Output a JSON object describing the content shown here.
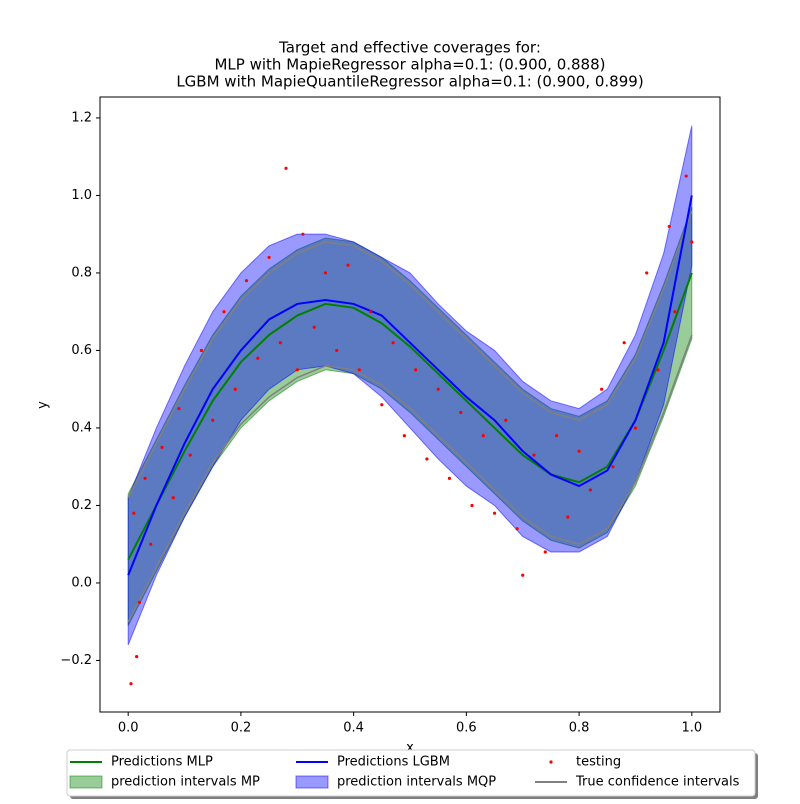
{
  "chart_data": {
    "type": "line",
    "title": [
      "Target and effective coverages for:",
      "MLP with MapieRegressor alpha=0.1: (0.900, 0.888)",
      "LGBM with MapieQuantileRegressor alpha=0.1: (0.900, 0.899)"
    ],
    "x_label": "x",
    "y_label": "y",
    "xlim": [
      -0.05,
      1.05
    ],
    "ylim": [
      -0.333,
      1.254
    ],
    "xticks": [
      {
        "value": 0,
        "label": "0.0"
      },
      {
        "value": 0.2,
        "label": "0.2"
      },
      {
        "value": 0.4,
        "label": "0.4"
      },
      {
        "value": 0.6,
        "label": "0.6"
      },
      {
        "value": 0.8,
        "label": "0.8"
      },
      {
        "value": 1,
        "label": "1.0"
      }
    ],
    "yticks": [
      {
        "value": -0.2,
        "label": "−0.2"
      },
      {
        "value": 0,
        "label": "0.0"
      },
      {
        "value": 0.2,
        "label": "0.2"
      },
      {
        "value": 0.4,
        "label": "0.4"
      },
      {
        "value": 0.6,
        "label": "0.6"
      },
      {
        "value": 0.8,
        "label": "0.8"
      },
      {
        "value": 1,
        "label": "1.0"
      },
      {
        "value": 1.2,
        "label": "1.2"
      }
    ],
    "legend": "lower center",
    "x": [
      0,
      0.05,
      0.1,
      0.15,
      0.2,
      0.25,
      0.3,
      0.35,
      0.4,
      0.45,
      0.5,
      0.55,
      0.6,
      0.65,
      0.7,
      0.75,
      0.8,
      0.85,
      0.9,
      0.95,
      1.0
    ],
    "series": [
      {
        "name": "Predictions MLP",
        "kind": "line",
        "color": "#008000",
        "values": [
          0.06,
          0.2,
          0.34,
          0.47,
          0.57,
          0.64,
          0.69,
          0.72,
          0.71,
          0.67,
          0.61,
          0.54,
          0.47,
          0.4,
          0.33,
          0.28,
          0.26,
          0.3,
          0.42,
          0.6,
          0.8
        ]
      },
      {
        "name": "prediction intervals MP",
        "kind": "band",
        "color": "#008000",
        "lower": [
          -0.11,
          0.03,
          0.17,
          0.3,
          0.4,
          0.47,
          0.52,
          0.55,
          0.54,
          0.5,
          0.44,
          0.37,
          0.3,
          0.23,
          0.16,
          0.11,
          0.09,
          0.13,
          0.25,
          0.43,
          0.63
        ],
        "upper": [
          0.23,
          0.37,
          0.51,
          0.64,
          0.74,
          0.81,
          0.86,
          0.89,
          0.88,
          0.84,
          0.78,
          0.71,
          0.64,
          0.57,
          0.5,
          0.45,
          0.43,
          0.47,
          0.59,
          0.77,
          0.97
        ]
      },
      {
        "name": "Predictions LGBM",
        "kind": "line",
        "color": "#0000ff",
        "values": [
          0.02,
          0.2,
          0.36,
          0.5,
          0.6,
          0.68,
          0.72,
          0.73,
          0.72,
          0.69,
          0.62,
          0.55,
          0.48,
          0.42,
          0.34,
          0.28,
          0.25,
          0.29,
          0.42,
          0.62,
          1.0
        ]
      },
      {
        "name": "prediction intervals MQP",
        "kind": "band",
        "color": "#0000ff",
        "lower": [
          -0.16,
          0.02,
          0.17,
          0.3,
          0.42,
          0.5,
          0.55,
          0.56,
          0.54,
          0.48,
          0.4,
          0.32,
          0.25,
          0.2,
          0.12,
          0.08,
          0.08,
          0.12,
          0.26,
          0.46,
          0.82
        ],
        "upper": [
          0.22,
          0.4,
          0.56,
          0.7,
          0.8,
          0.87,
          0.9,
          0.9,
          0.88,
          0.84,
          0.8,
          0.72,
          0.65,
          0.6,
          0.52,
          0.47,
          0.45,
          0.5,
          0.64,
          0.85,
          1.18
        ]
      },
      {
        "name": "testing",
        "kind": "scatter",
        "color": "#ff0000",
        "x": [
          0.005,
          0.01,
          0.015,
          0.02,
          0.03,
          0.04,
          0.06,
          0.08,
          0.09,
          0.11,
          0.13,
          0.15,
          0.17,
          0.19,
          0.21,
          0.23,
          0.25,
          0.27,
          0.28,
          0.3,
          0.31,
          0.33,
          0.35,
          0.37,
          0.39,
          0.41,
          0.43,
          0.45,
          0.47,
          0.49,
          0.51,
          0.53,
          0.55,
          0.57,
          0.59,
          0.61,
          0.63,
          0.65,
          0.67,
          0.69,
          0.7,
          0.72,
          0.74,
          0.76,
          0.78,
          0.8,
          0.82,
          0.84,
          0.86,
          0.88,
          0.9,
          0.92,
          0.94,
          0.96,
          0.97,
          0.99,
          1.0
        ],
        "values": [
          -0.26,
          0.18,
          -0.19,
          -0.05,
          0.27,
          0.1,
          0.35,
          0.22,
          0.45,
          0.33,
          0.6,
          0.42,
          0.7,
          0.5,
          0.78,
          0.58,
          0.84,
          0.62,
          1.07,
          0.55,
          0.9,
          0.66,
          0.8,
          0.6,
          0.82,
          0.55,
          0.7,
          0.46,
          0.62,
          0.38,
          0.55,
          0.32,
          0.5,
          0.27,
          0.44,
          0.2,
          0.38,
          0.18,
          0.42,
          0.14,
          0.02,
          0.33,
          0.08,
          0.38,
          0.17,
          0.34,
          0.24,
          0.5,
          0.3,
          0.62,
          0.4,
          0.8,
          0.55,
          0.92,
          0.7,
          1.05,
          0.88
        ]
      },
      {
        "name": "True confidence intervals",
        "kind": "ci",
        "color": "#808080",
        "lower": [
          -0.1,
          0.04,
          0.18,
          0.31,
          0.41,
          0.48,
          0.53,
          0.56,
          0.55,
          0.51,
          0.45,
          0.38,
          0.31,
          0.24,
          0.17,
          0.12,
          0.1,
          0.14,
          0.26,
          0.44,
          0.64
        ],
        "upper": [
          0.22,
          0.36,
          0.5,
          0.63,
          0.73,
          0.8,
          0.85,
          0.88,
          0.87,
          0.83,
          0.77,
          0.7,
          0.63,
          0.56,
          0.49,
          0.44,
          0.42,
          0.46,
          0.58,
          0.76,
          0.96
        ]
      }
    ]
  }
}
